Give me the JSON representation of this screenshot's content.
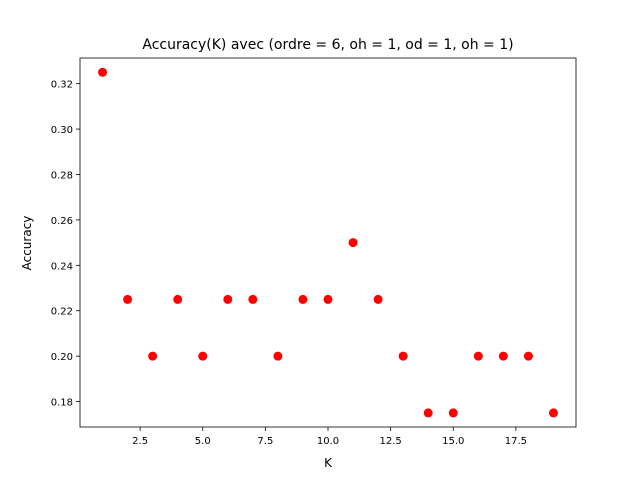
{
  "chart_data": {
    "type": "scatter",
    "title": "Accuracy(K) avec (ordre = 6, oh = 1, od = 1, oh = 1)",
    "xlabel": "K",
    "ylabel": "Accuracy",
    "xlim": [
      0.1,
      19.9
    ],
    "ylim": [
      0.1688,
      0.3313
    ],
    "xticks": [
      2.5,
      5.0,
      7.5,
      10.0,
      12.5,
      15.0,
      17.5
    ],
    "xtick_labels": [
      "2.5",
      "5.0",
      "7.5",
      "10.0",
      "12.5",
      "15.0",
      "17.5"
    ],
    "yticks": [
      0.18,
      0.2,
      0.22,
      0.24,
      0.26,
      0.28,
      0.3,
      0.32
    ],
    "ytick_labels": [
      "0.18",
      "0.20",
      "0.22",
      "0.24",
      "0.26",
      "0.28",
      "0.30",
      "0.32"
    ],
    "grid": false,
    "marker_color": "#ff0000",
    "x": [
      1,
      2,
      3,
      4,
      5,
      6,
      7,
      8,
      9,
      10,
      11,
      12,
      13,
      14,
      15,
      16,
      17,
      18,
      19
    ],
    "y": [
      0.325,
      0.225,
      0.2,
      0.225,
      0.2,
      0.225,
      0.225,
      0.2,
      0.225,
      0.225,
      0.25,
      0.225,
      0.2,
      0.175,
      0.175,
      0.2,
      0.2,
      0.2,
      0.175
    ]
  }
}
